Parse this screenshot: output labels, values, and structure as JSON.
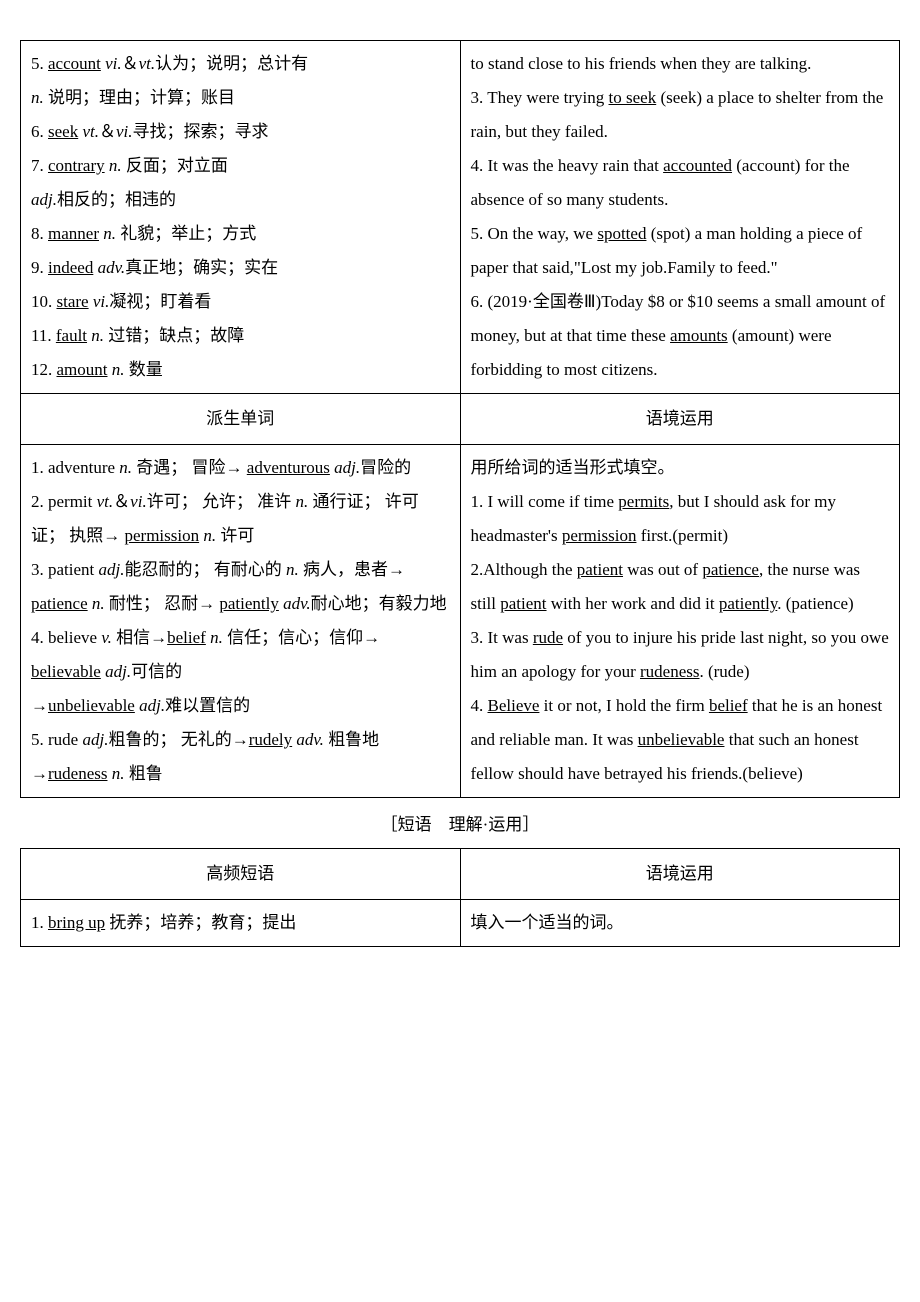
{
  "table1": {
    "left": {
      "l5a": "5. ",
      "l5b": "account",
      "l5c": " ",
      "l5d": "vi.",
      "l5e": "＆",
      "l5f": "vt.",
      "l5g": "认为；说明；总计有",
      "l5h": "n.",
      "l5i": " 说明；理由；计算；账目",
      "l6a": "6. ",
      "l6b": "seek",
      "l6c": " ",
      "l6d": "vt.",
      "l6e": "＆",
      "l6f": "vi.",
      "l6g": "寻找；探索；寻求",
      "l7a": "7. ",
      "l7b": "contrary",
      "l7c": " ",
      "l7d": "n.",
      "l7e": " 反面；对立面",
      "l7f": "adj.",
      "l7g": "相反的；相违的",
      "l8a": "8. ",
      "l8b": "manner",
      "l8c": " ",
      "l8d": "n.",
      "l8e": " 礼貌；举止；方式",
      "l9a": "9. ",
      "l9b": "indeed",
      "l9c": " ",
      "l9d": "adv.",
      "l9e": "真正地；确实；实在",
      "l10a": "10. ",
      "l10b": "stare",
      "l10c": " ",
      "l10d": "vi.",
      "l10e": "凝视；盯着看",
      "l11a": "11. ",
      "l11b": "fault",
      "l11c": " ",
      "l11d": "n.",
      "l11e": " 过错；缺点；故障",
      "l12a": "12. ",
      "l12b": "amount",
      "l12c": " ",
      "l12d": "n.",
      "l12e": " 数量"
    },
    "right": {
      "r2a": "to stand close to his friends when they are talking.",
      "r3a": "3. They were trying ",
      "r3b": "to seek",
      "r3c": " (seek) a place to shelter from the rain, but they failed.",
      "r4a": "4. It was the heavy rain that ",
      "r4b": "accounted",
      "r4c": " (account) for the absence of so many students.",
      "r5a": "5. On the way, we ",
      "r5b": "spotted",
      "r5c": " (spot) a man holding a piece of paper that said,\"Lost my job.Family to feed.\"",
      "r6a": "6. (2019·全国卷Ⅲ)Today $8 or $10 seems a small amount of money, but at that time these ",
      "r6b": "amounts",
      "r6c": " (amount) were forbidding to most citizens."
    }
  },
  "headers": {
    "h1": "派生单词",
    "h2": "语境运用"
  },
  "table2": {
    "left": {
      "d1a": "1. adventure ",
      "d1b": "n.",
      "d1c": " 奇遇； 冒险→ ",
      "d1d": "adventurous",
      "d1e": " ",
      "d1f": "adj.",
      "d1g": "冒险的",
      "d2a": "2. permit ",
      "d2b": "vt.",
      "d2c": "＆",
      "d2d": "vi.",
      "d2e": "许可； 允许； 准许 ",
      "d2f": "n.",
      "d2g": " 通行证； 许可证； 执照→ ",
      "d2h": "permission",
      "d2i": " ",
      "d2j": "n.",
      "d2k": " 许可",
      "d3a": "3. patient ",
      "d3b": "adj.",
      "d3c": "能忍耐的； 有耐心的 ",
      "d3d": "n.",
      "d3e": " 病人，患者→ ",
      "d3f": "patience",
      "d3g": " ",
      "d3h": "n.",
      "d3i": " 耐性； 忍耐→ ",
      "d3j": "patiently",
      "d3k": " ",
      "d3l": "adv.",
      "d3m": "耐心地；有毅力地",
      "d4a": "4. believe ",
      "d4b": "v.",
      "d4c": " 相信→",
      "d4d": "belief",
      "d4e": " ",
      "d4f": "n.",
      "d4g": " 信任；信心；信仰→ ",
      "d4h": "believable",
      "d4i": " ",
      "d4j": "adj.",
      "d4k": "可信的",
      "d4l": "→",
      "d4m": "unbelievable",
      "d4n": " ",
      "d4o": "adj.",
      "d4p": "难以置信的",
      "d5a": "5. rude ",
      "d5b": "adj.",
      "d5c": "粗鲁的； 无礼的→",
      "d5d": "rudely",
      "d5e": " ",
      "d5f": "adv.",
      "d5g": " 粗鲁地→",
      "d5h": "rudeness",
      "d5i": " ",
      "d5j": "n.",
      "d5k": " 粗鲁"
    },
    "right": {
      "e0": "用所给词的适当形式填空。",
      "e1a": "1. I will come if time ",
      "e1b": "permits",
      "e1c": ", but I should ask for my headmaster's ",
      "e1d": "permission",
      "e1e": " first.(permit)",
      "e2a": "2.Although the ",
      "e2b": "patient",
      "e2c": " was out of ",
      "e2d": "patience",
      "e2e": ", the nurse was still ",
      "e2f": "patient",
      "e2g": " with her work and did it ",
      "e2h": "patiently",
      "e2i": ". (patience)",
      "e3a": "3. It was ",
      "e3b": "rude",
      "e3c": " of you to injure his pride last night, so you owe him an apology for your ",
      "e3d": "rudeness",
      "e3e": ". (rude)",
      "e4a": "4. ",
      "e4b": "Believe",
      "e4c": " it or not, I hold the firm ",
      "e4d": "belief",
      "e4e": " that he is an honest and reliable man. It was ",
      "e4f": "unbelievable",
      "e4g": " that such an honest fellow should have betrayed his friends.(believe)"
    }
  },
  "caption": "［短语　理解·运用］",
  "headers2": {
    "h3": "高频短语",
    "h4": "语境运用"
  },
  "table3": {
    "left": {
      "p1a": "1. ",
      "p1b": "bring up",
      "p1c": " 抚养；培养；教育；提出"
    },
    "right": {
      "p2": "填入一个适当的词。"
    }
  }
}
